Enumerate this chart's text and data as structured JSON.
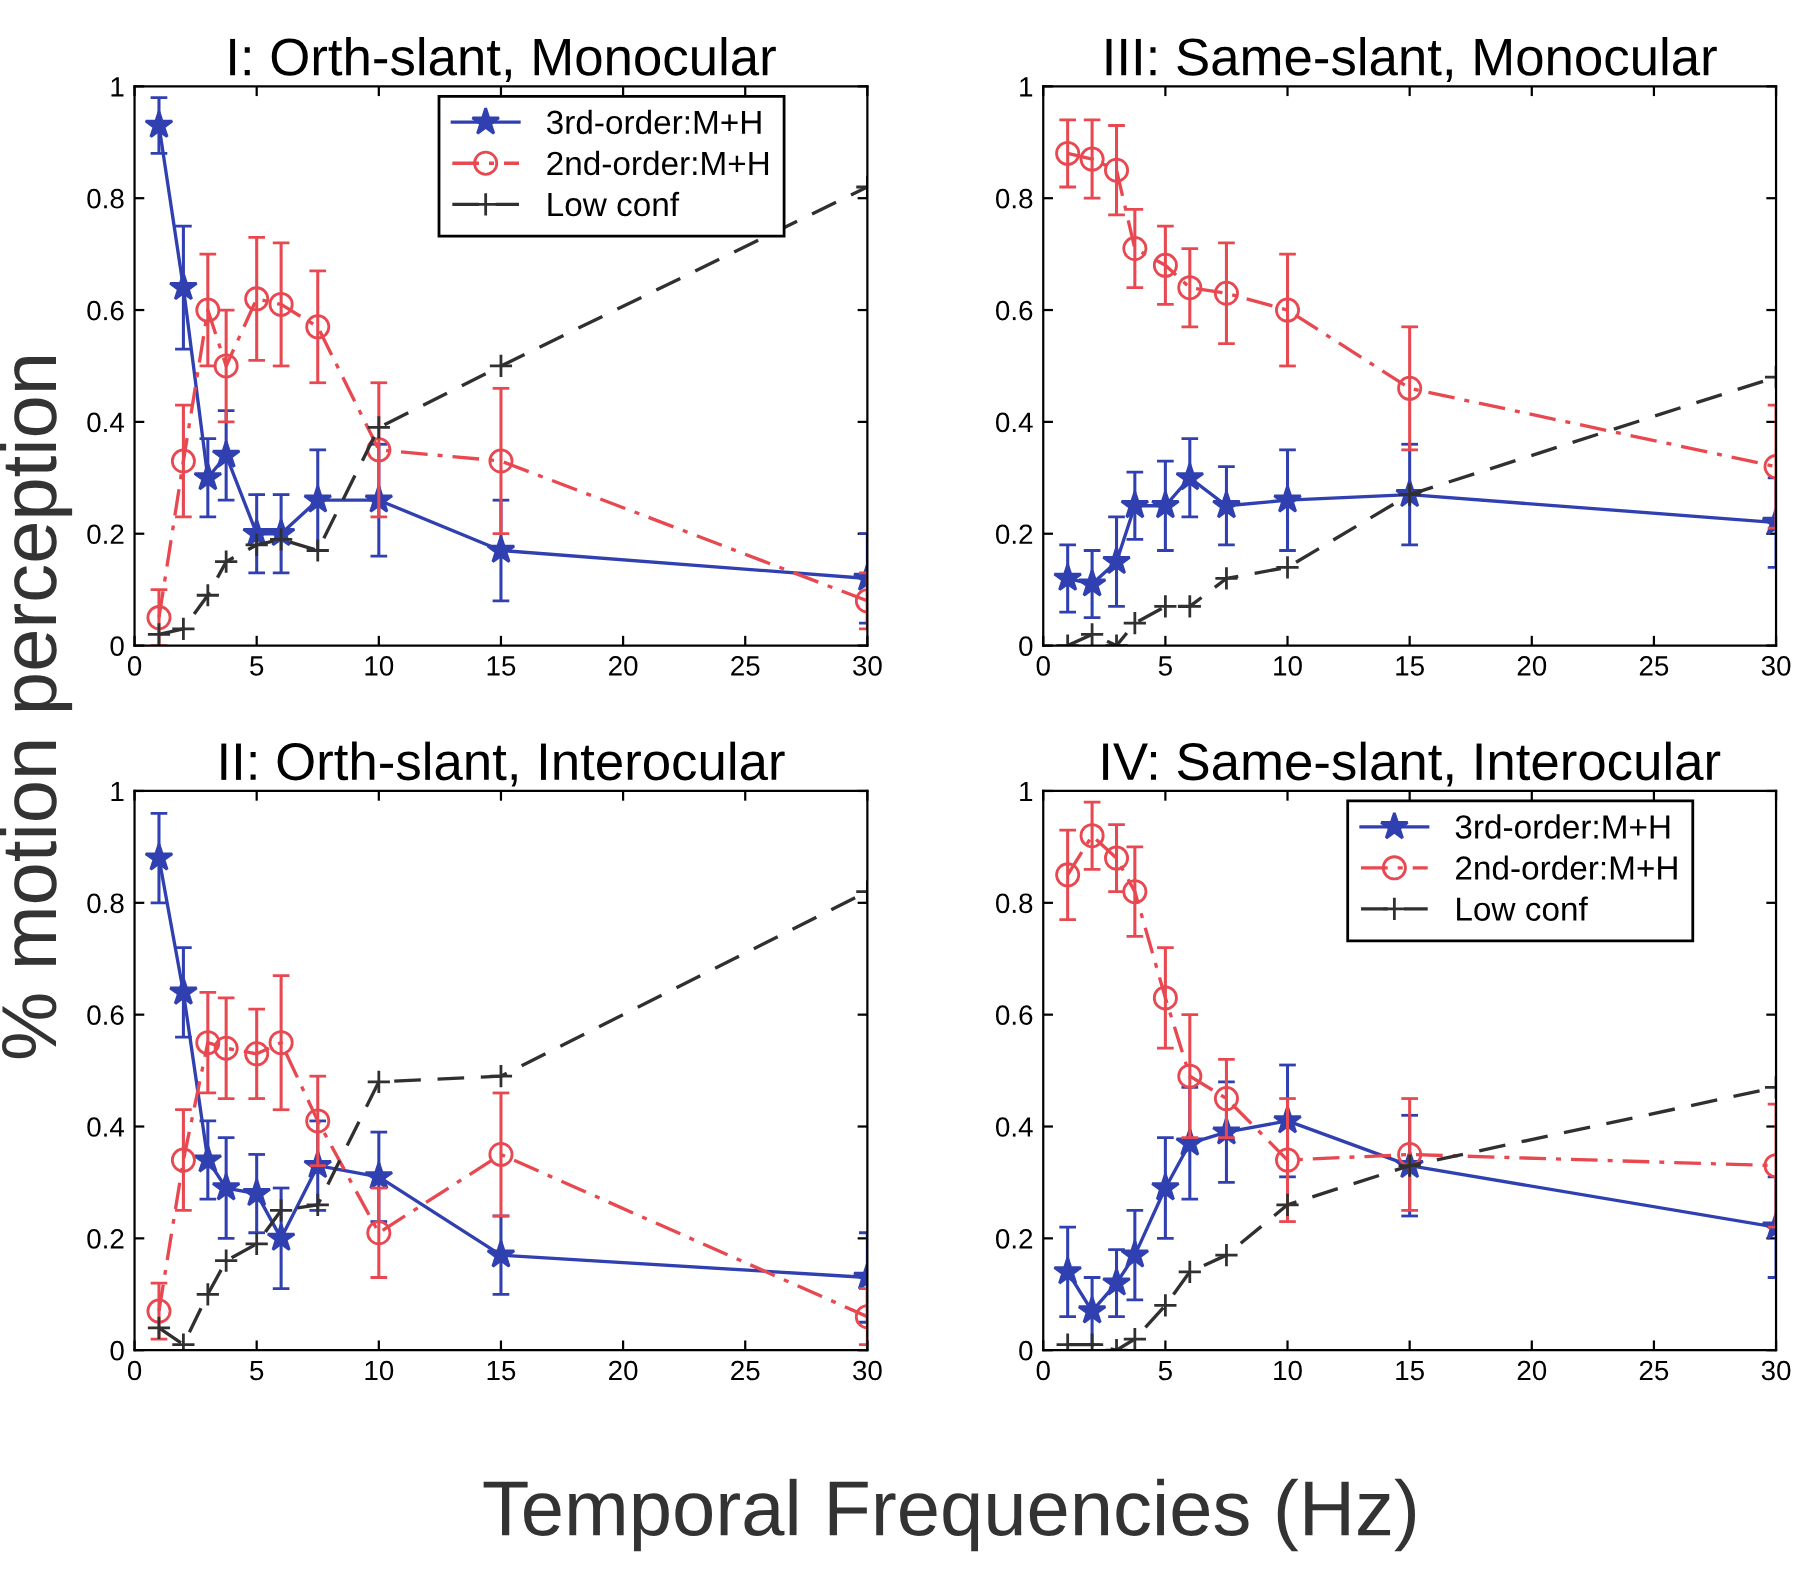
{
  "chart_data": [
    {
      "type": "line",
      "title": "I: Orth-slant, Monocular",
      "xlabel": "Temporal Frequencies (Hz)",
      "ylabel": "% motion perception",
      "x": [
        1,
        2,
        3,
        3.75,
        5,
        6,
        7.5,
        10,
        15,
        30
      ],
      "xlim": [
        0,
        30
      ],
      "ylim": [
        0,
        1
      ],
      "xticks": [
        0,
        5,
        10,
        15,
        20,
        25,
        30
      ],
      "yticks": [
        0,
        0.2,
        0.4,
        0.6,
        0.8,
        1
      ],
      "grid": false,
      "legend": "top right",
      "series": [
        {
          "name": "3rd-order:M+H",
          "color": "#3040b0",
          "marker": "star",
          "line_style": "solid",
          "values": [
            0.93,
            0.64,
            0.3,
            0.34,
            0.2,
            0.2,
            0.26,
            0.26,
            0.17,
            0.12
          ],
          "errors": [
            0.05,
            0.11,
            0.07,
            0.08,
            0.07,
            0.07,
            0.09,
            0.1,
            0.09,
            0.08
          ]
        },
        {
          "name": "2nd-order:M+H",
          "color": "#e84850",
          "marker": "circle",
          "line_style": "dashdot",
          "values": [
            0.05,
            0.33,
            0.6,
            0.5,
            0.62,
            0.61,
            0.57,
            0.35,
            0.33,
            0.08
          ],
          "errors": [
            0.05,
            0.1,
            0.1,
            0.1,
            0.11,
            0.11,
            0.1,
            0.12,
            0.13,
            0.05
          ]
        },
        {
          "name": "Low conf",
          "color": "#303030",
          "marker": "cross",
          "line_style": "dashed",
          "values": [
            0.02,
            0.03,
            0.09,
            0.15,
            0.18,
            0.19,
            0.17,
            0.39,
            0.5,
            0.82
          ]
        }
      ]
    },
    {
      "type": "line",
      "title": "III: Same-slant, Monocular",
      "x": [
        1,
        2,
        3,
        3.75,
        5,
        6,
        7.5,
        10,
        15,
        30
      ],
      "xlim": [
        0,
        30
      ],
      "ylim": [
        0,
        1
      ],
      "xticks": [
        0,
        5,
        10,
        15,
        20,
        25,
        30
      ],
      "yticks": [
        0,
        0.2,
        0.4,
        0.6,
        0.8,
        1
      ],
      "grid": false,
      "series": [
        {
          "color": "#3040b0",
          "marker": "star",
          "line_style": "solid",
          "values": [
            0.12,
            0.11,
            0.15,
            0.25,
            0.25,
            0.3,
            0.25,
            0.26,
            0.27,
            0.22
          ],
          "errors": [
            0.06,
            0.06,
            0.08,
            0.06,
            0.08,
            0.07,
            0.07,
            0.09,
            0.09,
            0.08
          ]
        },
        {
          "color": "#e84850",
          "marker": "circle",
          "line_style": "dashdot",
          "values": [
            0.88,
            0.87,
            0.85,
            0.71,
            0.68,
            0.64,
            0.63,
            0.6,
            0.46,
            0.32
          ],
          "errors": [
            0.06,
            0.07,
            0.08,
            0.07,
            0.07,
            0.07,
            0.09,
            0.1,
            0.11,
            0.11
          ]
        },
        {
          "color": "#303030",
          "marker": "cross",
          "line_style": "dashed",
          "values": [
            0.0,
            0.02,
            0.0,
            0.04,
            0.07,
            0.07,
            0.12,
            0.14,
            0.27,
            0.48
          ]
        }
      ]
    },
    {
      "type": "line",
      "title": "II: Orth-slant, Interocular",
      "x": [
        1,
        2,
        3,
        3.75,
        5,
        6,
        7.5,
        10,
        15,
        30
      ],
      "xlim": [
        0,
        30
      ],
      "ylim": [
        0,
        1
      ],
      "xticks": [
        0,
        5,
        10,
        15,
        20,
        25,
        30
      ],
      "yticks": [
        0,
        0.2,
        0.4,
        0.6,
        0.8,
        1
      ],
      "grid": false,
      "series": [
        {
          "color": "#3040b0",
          "marker": "star",
          "line_style": "solid",
          "values": [
            0.88,
            0.64,
            0.34,
            0.29,
            0.28,
            0.2,
            0.33,
            0.31,
            0.17,
            0.13
          ],
          "errors": [
            0.08,
            0.08,
            0.07,
            0.09,
            0.07,
            0.09,
            0.08,
            0.08,
            0.07,
            0.08
          ]
        },
        {
          "color": "#e84850",
          "marker": "circle",
          "line_style": "dashdot",
          "values": [
            0.07,
            0.34,
            0.55,
            0.54,
            0.53,
            0.55,
            0.41,
            0.21,
            0.35,
            0.06
          ],
          "errors": [
            0.05,
            0.09,
            0.09,
            0.09,
            0.08,
            0.12,
            0.08,
            0.08,
            0.11,
            0.05
          ]
        },
        {
          "color": "#303030",
          "marker": "cross",
          "line_style": "dashed",
          "values": [
            0.04,
            0.01,
            0.1,
            0.16,
            0.19,
            0.25,
            0.26,
            0.48,
            0.49,
            0.82
          ]
        }
      ]
    },
    {
      "type": "line",
      "title": "IV: Same-slant, Interocular",
      "x": [
        1,
        2,
        3,
        3.75,
        5,
        6,
        7.5,
        10,
        15,
        30
      ],
      "xlim": [
        0,
        30
      ],
      "ylim": [
        0,
        1
      ],
      "xticks": [
        0,
        5,
        10,
        15,
        20,
        25,
        30
      ],
      "yticks": [
        0,
        0.2,
        0.4,
        0.6,
        0.8,
        1
      ],
      "grid": false,
      "legend": "top right",
      "series": [
        {
          "name": "3rd-order:M+H",
          "color": "#3040b0",
          "marker": "star",
          "line_style": "solid",
          "values": [
            0.14,
            0.07,
            0.12,
            0.17,
            0.29,
            0.37,
            0.39,
            0.41,
            0.33,
            0.22
          ],
          "errors": [
            0.08,
            0.06,
            0.06,
            0.08,
            0.09,
            0.1,
            0.09,
            0.1,
            0.09,
            0.09
          ]
        },
        {
          "name": "2nd-order:M+H",
          "color": "#e84850",
          "marker": "circle",
          "line_style": "dashdot",
          "values": [
            0.85,
            0.92,
            0.88,
            0.82,
            0.63,
            0.49,
            0.45,
            0.34,
            0.35,
            0.33
          ],
          "errors": [
            0.08,
            0.06,
            0.06,
            0.08,
            0.09,
            0.11,
            0.07,
            0.11,
            0.1,
            0.11
          ]
        },
        {
          "name": "Low conf",
          "color": "#303030",
          "marker": "cross",
          "line_style": "dashed",
          "values": [
            0.01,
            0.01,
            0.0,
            0.02,
            0.08,
            0.14,
            0.17,
            0.26,
            0.33,
            0.47
          ]
        }
      ]
    }
  ]
}
